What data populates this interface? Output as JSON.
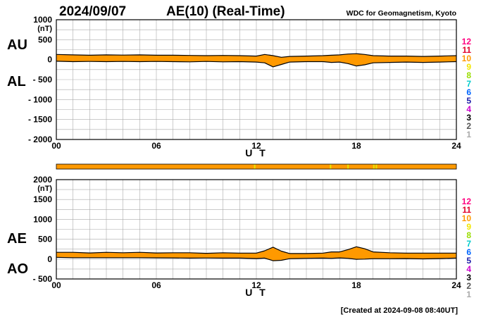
{
  "header": {
    "date": "2024/09/07",
    "title": "AE(10) (Real-Time)",
    "source": "WDC for Geomagnetism, Kyoto"
  },
  "footer": {
    "created": "[Created at 2024-09-08 08:40UT]"
  },
  "legend": {
    "entries": [
      {
        "label": "12",
        "color": "#ff0080"
      },
      {
        "label": "11",
        "color": "#e0002a"
      },
      {
        "label": "10",
        "color": "#ff9900"
      },
      {
        "label": "9",
        "color": "#f2e600"
      },
      {
        "label": "8",
        "color": "#99dd00"
      },
      {
        "label": "7",
        "color": "#00cccc"
      },
      {
        "label": "6",
        "color": "#0066ff"
      },
      {
        "label": "5",
        "color": "#1a1aa6"
      },
      {
        "label": "4",
        "color": "#cc00cc"
      },
      {
        "label": "3",
        "color": "#000000"
      },
      {
        "label": "2",
        "color": "#555555"
      },
      {
        "label": "1",
        "color": "#aaaaaa"
      }
    ]
  },
  "colors": {
    "fill": "#ff9900",
    "gap": "#e6e600",
    "grid": "#aaaaaa",
    "axis": "#000000"
  },
  "chart_data": [
    {
      "type": "area",
      "name": "AU/AL",
      "labels": [
        "AU",
        "AL"
      ],
      "ylabel_unit": "(nT)",
      "xlabel": "U T",
      "xlim": [
        0,
        24
      ],
      "ylim": [
        -2000,
        1000
      ],
      "x_ticks": [
        "00",
        "06",
        "12",
        "18",
        "24"
      ],
      "x_tick_values": [
        0,
        6,
        12,
        18,
        24
      ],
      "y_tick_labels": [
        "1000",
        "500",
        "0",
        "- 500",
        "- 1000",
        "- 1500",
        "- 2000"
      ],
      "y_tick_values": [
        1000,
        500,
        0,
        -500,
        -1000,
        -1500,
        -2000
      ],
      "series": [
        {
          "name": "AU",
          "x": [
            0,
            1,
            2,
            3,
            4,
            5,
            6,
            7,
            8,
            9,
            10,
            11,
            12,
            12.5,
            13,
            13.5,
            14,
            15,
            16,
            16.5,
            17,
            17.5,
            18,
            18.5,
            19,
            20,
            21,
            22,
            23,
            24
          ],
          "values": [
            130,
            120,
            110,
            120,
            115,
            120,
            110,
            110,
            105,
            100,
            105,
            100,
            90,
            130,
            100,
            60,
            80,
            90,
            100,
            110,
            120,
            140,
            150,
            130,
            100,
            90,
            90,
            80,
            90,
            100
          ]
        },
        {
          "name": "AL",
          "x": [
            0,
            1,
            2,
            3,
            4,
            5,
            6,
            7,
            8,
            9,
            10,
            11,
            12,
            12.5,
            13,
            13.5,
            14,
            15,
            16,
            16.5,
            17,
            17.5,
            18,
            18.5,
            19,
            20,
            21,
            22,
            23,
            24
          ],
          "values": [
            -40,
            -50,
            -45,
            -50,
            -45,
            -50,
            -45,
            -50,
            -55,
            -45,
            -55,
            -50,
            -60,
            -80,
            -180,
            -120,
            -60,
            -50,
            -50,
            -70,
            -60,
            -100,
            -160,
            -130,
            -80,
            -70,
            -60,
            -70,
            -60,
            -50
          ]
        }
      ]
    },
    {
      "type": "area",
      "name": "AE/AO",
      "labels": [
        "AE",
        "AO"
      ],
      "ylabel_unit": "(nT)",
      "xlabel": "U T",
      "xlim": [
        0,
        24
      ],
      "ylim": [
        -500,
        2000
      ],
      "x_ticks": [
        "00",
        "06",
        "12",
        "18",
        "24"
      ],
      "x_tick_values": [
        0,
        6,
        12,
        18,
        24
      ],
      "y_tick_labels": [
        "2000",
        "1500",
        "1000",
        "500",
        "0",
        "- 500"
      ],
      "y_tick_values": [
        2000,
        1500,
        1000,
        500,
        0,
        -500
      ],
      "series": [
        {
          "name": "AE",
          "x": [
            0,
            1,
            2,
            3,
            4,
            5,
            6,
            7,
            8,
            9,
            10,
            11,
            12,
            12.5,
            13,
            13.5,
            14,
            15,
            16,
            16.5,
            17,
            17.5,
            18,
            18.5,
            19,
            20,
            21,
            22,
            23,
            24
          ],
          "values": [
            170,
            170,
            155,
            170,
            160,
            170,
            155,
            160,
            160,
            145,
            160,
            150,
            150,
            210,
            300,
            200,
            140,
            140,
            150,
            180,
            180,
            240,
            310,
            260,
            180,
            160,
            150,
            150,
            150,
            150
          ]
        },
        {
          "name": "AO",
          "x": [
            0,
            1,
            2,
            3,
            4,
            5,
            6,
            7,
            8,
            9,
            10,
            11,
            12,
            12.5,
            13,
            13.5,
            14,
            15,
            16,
            16.5,
            17,
            17.5,
            18,
            18.5,
            19,
            20,
            21,
            22,
            23,
            24
          ],
          "values": [
            45,
            35,
            35,
            35,
            35,
            35,
            32,
            30,
            25,
            28,
            25,
            25,
            15,
            25,
            -40,
            -30,
            10,
            20,
            25,
            20,
            30,
            20,
            -5,
            0,
            10,
            10,
            15,
            5,
            15,
            25
          ]
        }
      ]
    }
  ],
  "station_bar": {
    "color": "#ff9900",
    "gaps_ut": [
      11.9,
      16.45,
      17.5,
      19.05,
      19.2
    ]
  }
}
